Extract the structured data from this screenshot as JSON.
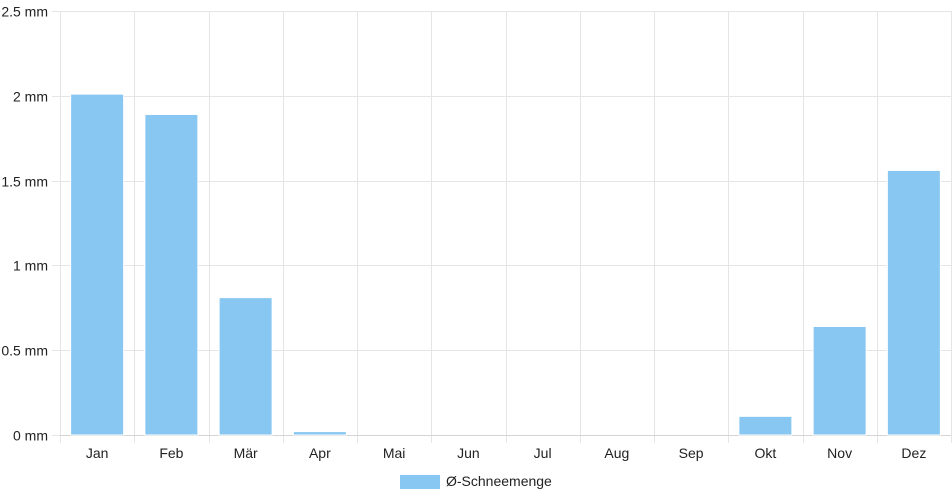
{
  "chart_data": {
    "type": "bar",
    "categories": [
      "Jan",
      "Feb",
      "Mär",
      "Apr",
      "Mai",
      "Jun",
      "Jul",
      "Aug",
      "Sep",
      "Okt",
      "Nov",
      "Dez"
    ],
    "series": [
      {
        "name": "Ø-Schneemenge",
        "values": [
          2.01,
          1.89,
          0.81,
          0.02,
          0,
          0,
          0,
          0,
          0,
          0.11,
          0.64,
          1.56
        ],
        "color": "#88c7f2"
      }
    ],
    "y_unit": "mm",
    "ylim": [
      0,
      2.5
    ],
    "yticks": [
      "0 mm",
      "0.5 mm",
      "1 mm",
      "1.5 mm",
      "2 mm",
      "2.5 mm"
    ],
    "ytick_values": [
      0,
      0.5,
      1,
      1.5,
      2,
      2.5
    ],
    "grid": true,
    "legend_position": "bottom-center"
  }
}
